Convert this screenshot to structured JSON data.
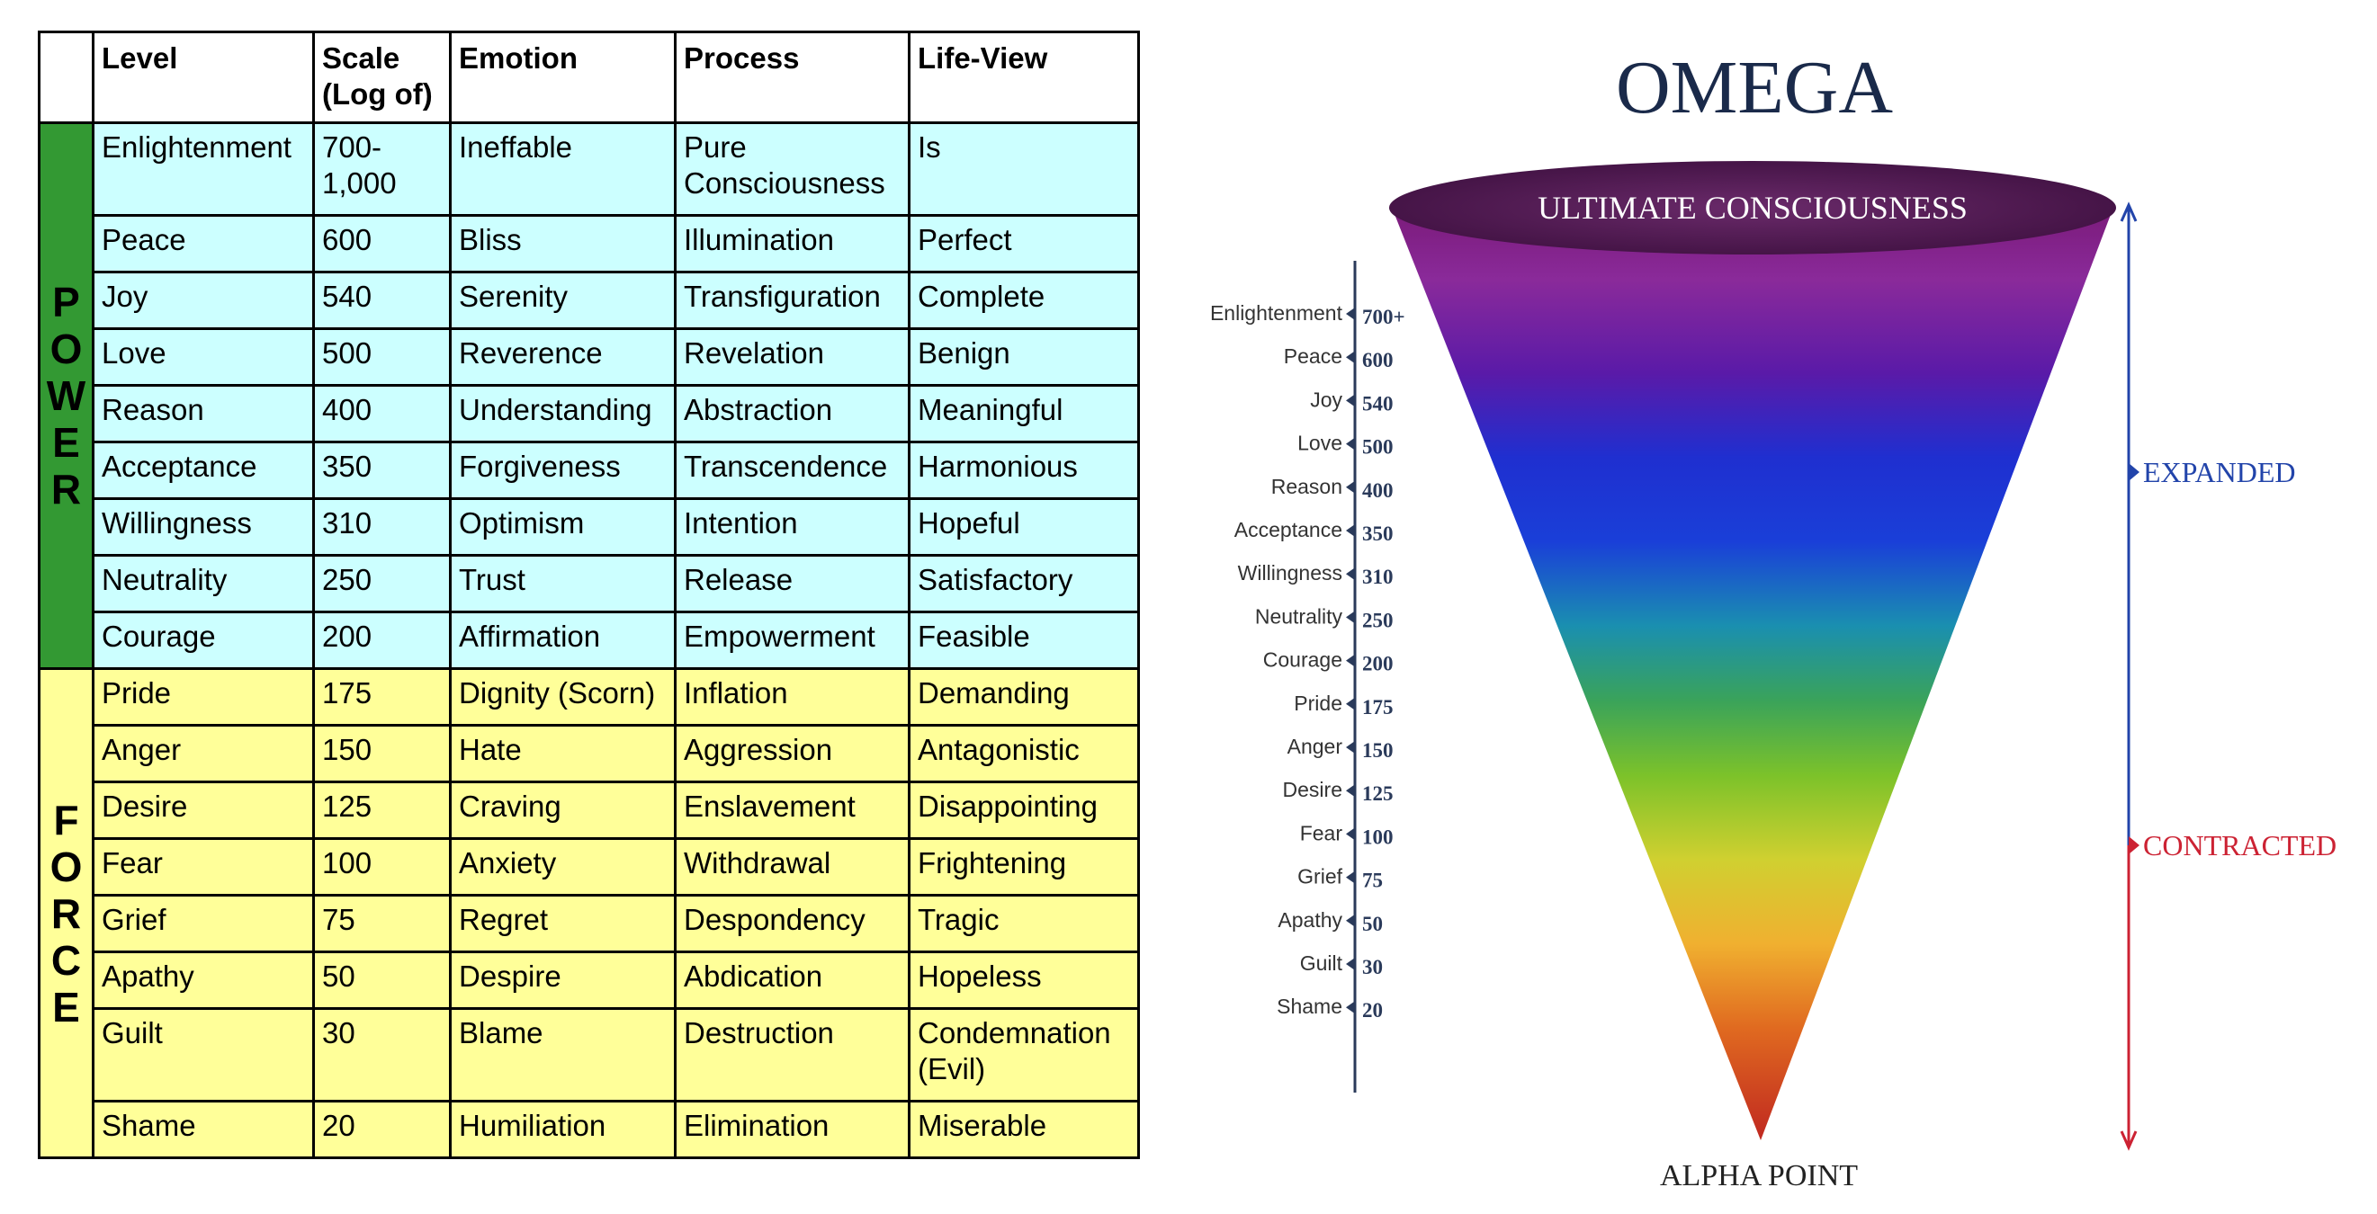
{
  "table": {
    "headers": [
      "Level",
      "Scale\n(Log of)",
      "Emotion",
      "Process",
      "Life-View"
    ],
    "power_label": "POWER",
    "force_label": "FORCE",
    "power_rows": [
      [
        "Enlightenment",
        "700-\n1,000",
        "Ineffable",
        "Pure\nConsciousness",
        "Is"
      ],
      [
        "Peace",
        "600",
        "Bliss",
        "Illumination",
        "Perfect"
      ],
      [
        "Joy",
        "540",
        "Serenity",
        "Transfiguration",
        "Complete"
      ],
      [
        "Love",
        "500",
        "Reverence",
        "Revelation",
        "Benign"
      ],
      [
        "Reason",
        "400",
        "Understanding",
        "Abstraction",
        "Meaningful"
      ],
      [
        "Acceptance",
        "350",
        "Forgiveness",
        "Transcendence",
        "Harmonious"
      ],
      [
        "Willingness",
        "310",
        "Optimism",
        "Intention",
        "Hopeful"
      ],
      [
        "Neutrality",
        "250",
        "Trust",
        "Release",
        "Satisfactory"
      ],
      [
        "Courage",
        "200",
        "Affirmation",
        "Empowerment",
        "Feasible"
      ]
    ],
    "force_rows": [
      [
        "Pride",
        "175",
        "Dignity (Scorn)",
        "Inflation",
        "Demanding"
      ],
      [
        "Anger",
        "150",
        "Hate",
        "Aggression",
        "Antagonistic"
      ],
      [
        "Desire",
        "125",
        "Craving",
        "Enslavement",
        "Disappointing"
      ],
      [
        "Fear",
        "100",
        "Anxiety",
        "Withdrawal",
        "Frightening"
      ],
      [
        "Grief",
        "75",
        "Regret",
        "Despondency",
        "Tragic"
      ],
      [
        "Apathy",
        "50",
        "Despire",
        "Abdication",
        "Hopeless"
      ],
      [
        "Guilt",
        "30",
        "Blame",
        "Destruction",
        "Condemnation\n(Evil)"
      ],
      [
        "Shame",
        "20",
        "Humiliation",
        "Elimination",
        "Miserable"
      ]
    ],
    "colors": {
      "power_side": "#339933",
      "power_cells": "#ccffff",
      "force": "#ffff99"
    }
  },
  "omega": {
    "title": "OMEGA",
    "top_label": "ULTIMATE CONSCIOUSNESS",
    "bottom_label": "ALPHA POINT",
    "expanded_label": "EXPANDED",
    "contracted_label": "CONTRACTED",
    "levels": [
      {
        "name": "Enlightenment",
        "value": "700+"
      },
      {
        "name": "Peace",
        "value": "600"
      },
      {
        "name": "Joy",
        "value": "540"
      },
      {
        "name": "Love",
        "value": "500"
      },
      {
        "name": "Reason",
        "value": "400"
      },
      {
        "name": "Acceptance",
        "value": "350"
      },
      {
        "name": "Willingness",
        "value": "310"
      },
      {
        "name": "Neutrality",
        "value": "250"
      },
      {
        "name": "Courage",
        "value": "200"
      },
      {
        "name": "Pride",
        "value": "175"
      },
      {
        "name": "Anger",
        "value": "150"
      },
      {
        "name": "Desire",
        "value": "125"
      },
      {
        "name": "Fear",
        "value": "100"
      },
      {
        "name": "Grief",
        "value": "75"
      },
      {
        "name": "Apathy",
        "value": "50"
      },
      {
        "name": "Guilt",
        "value": "30"
      },
      {
        "name": "Shame",
        "value": "20"
      }
    ],
    "colors": {
      "title": "#1a2a4a",
      "expanded": "#2244aa",
      "contracted": "#cc2233",
      "ellipse": "#4a1850"
    }
  }
}
